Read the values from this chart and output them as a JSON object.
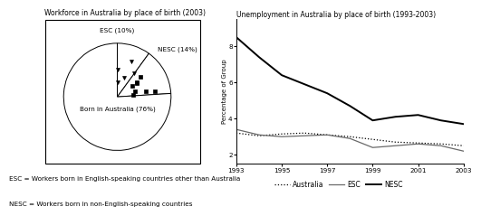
{
  "pie_title": "Workforce in Australia by place of birth (2003)",
  "pie_labels": [
    "ESC (10%)",
    "NESC (14%)",
    "Born in Australia (76%)"
  ],
  "pie_sizes": [
    10,
    14,
    76
  ],
  "line_title": "Unemployment in Australia by place of birth (1993-2003)",
  "line_ylabel": "Percentage of Group",
  "line_xlim": [
    1993,
    2003
  ],
  "line_ylim": [
    1.5,
    9.5
  ],
  "line_yticks": [
    2,
    4,
    6,
    8
  ],
  "line_xticks": [
    1993,
    1995,
    1997,
    1999,
    2001,
    2003
  ],
  "australia_x": [
    1993,
    1994,
    1995,
    1996,
    1997,
    1998,
    1999,
    2000,
    2001,
    2002,
    2003
  ],
  "australia_y": [
    3.2,
    3.05,
    3.15,
    3.2,
    3.1,
    3.0,
    2.85,
    2.7,
    2.65,
    2.6,
    2.5
  ],
  "esc_x": [
    1993,
    1994,
    1995,
    1996,
    1997,
    1998,
    1999,
    2000,
    2001,
    2002,
    2003
  ],
  "esc_y": [
    3.4,
    3.1,
    3.0,
    3.05,
    3.1,
    2.9,
    2.4,
    2.5,
    2.6,
    2.5,
    2.2
  ],
  "nesc_x": [
    1993,
    1994,
    1995,
    1996,
    1997,
    1998,
    1999,
    2000,
    2001,
    2002,
    2003
  ],
  "nesc_y": [
    8.5,
    7.4,
    6.4,
    5.9,
    5.4,
    4.7,
    3.9,
    4.1,
    4.2,
    3.9,
    3.7
  ],
  "footnote1": "ESC = Workers born in English-speaking countries other than Australia",
  "footnote2": "NESC = Workers born in non-English-speaking countries",
  "bg_color": "#ffffff"
}
